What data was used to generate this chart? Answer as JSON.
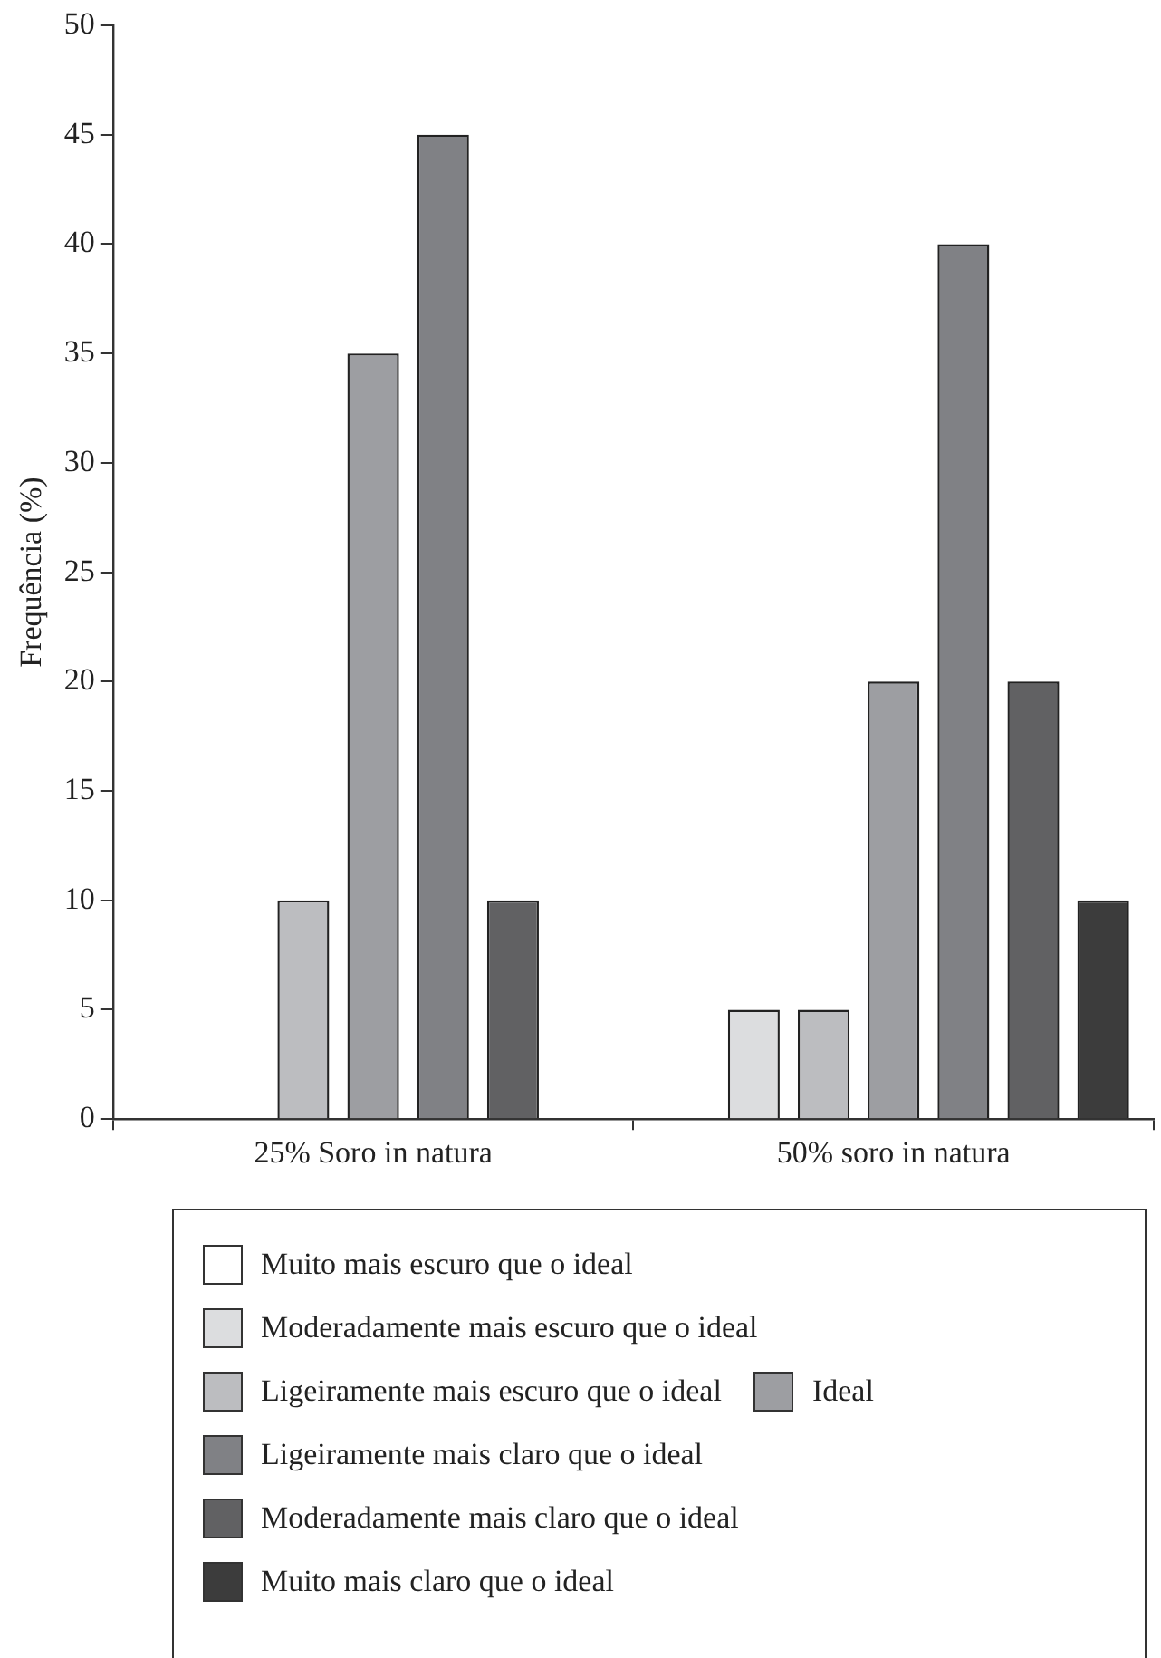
{
  "chart_data": {
    "type": "bar",
    "ylabel": "Frequência (%)",
    "categories": [
      "25% Soro in natura",
      "50% soro in natura"
    ],
    "series": [
      {
        "name": "Muito mais escuro que o ideal",
        "color": "#ffffff",
        "values": [
          0,
          0
        ]
      },
      {
        "name": "Moderadamente mais escuro que o ideal",
        "color": "#dcdddf",
        "values": [
          0,
          5
        ]
      },
      {
        "name": "Ligeiramente mais escuro que o ideal",
        "color": "#bcbdc0",
        "values": [
          10,
          5
        ]
      },
      {
        "name": "Ideal",
        "color": "#9d9ea2",
        "values": [
          35,
          20
        ]
      },
      {
        "name": "Ligeiramente mais claro que o ideal",
        "color": "#808185",
        "values": [
          45,
          40
        ]
      },
      {
        "name": "Moderadamente mais claro que o ideal",
        "color": "#616163",
        "values": [
          10,
          20
        ]
      },
      {
        "name": "Muito mais claro que o ideal",
        "color": "#3c3c3c",
        "values": [
          0,
          10
        ]
      }
    ],
    "ylim": [
      0,
      50
    ],
    "yticks": [
      0,
      5,
      10,
      15,
      20,
      25,
      30,
      35,
      40,
      45,
      50
    ],
    "grid": false,
    "legend": "bottom"
  }
}
